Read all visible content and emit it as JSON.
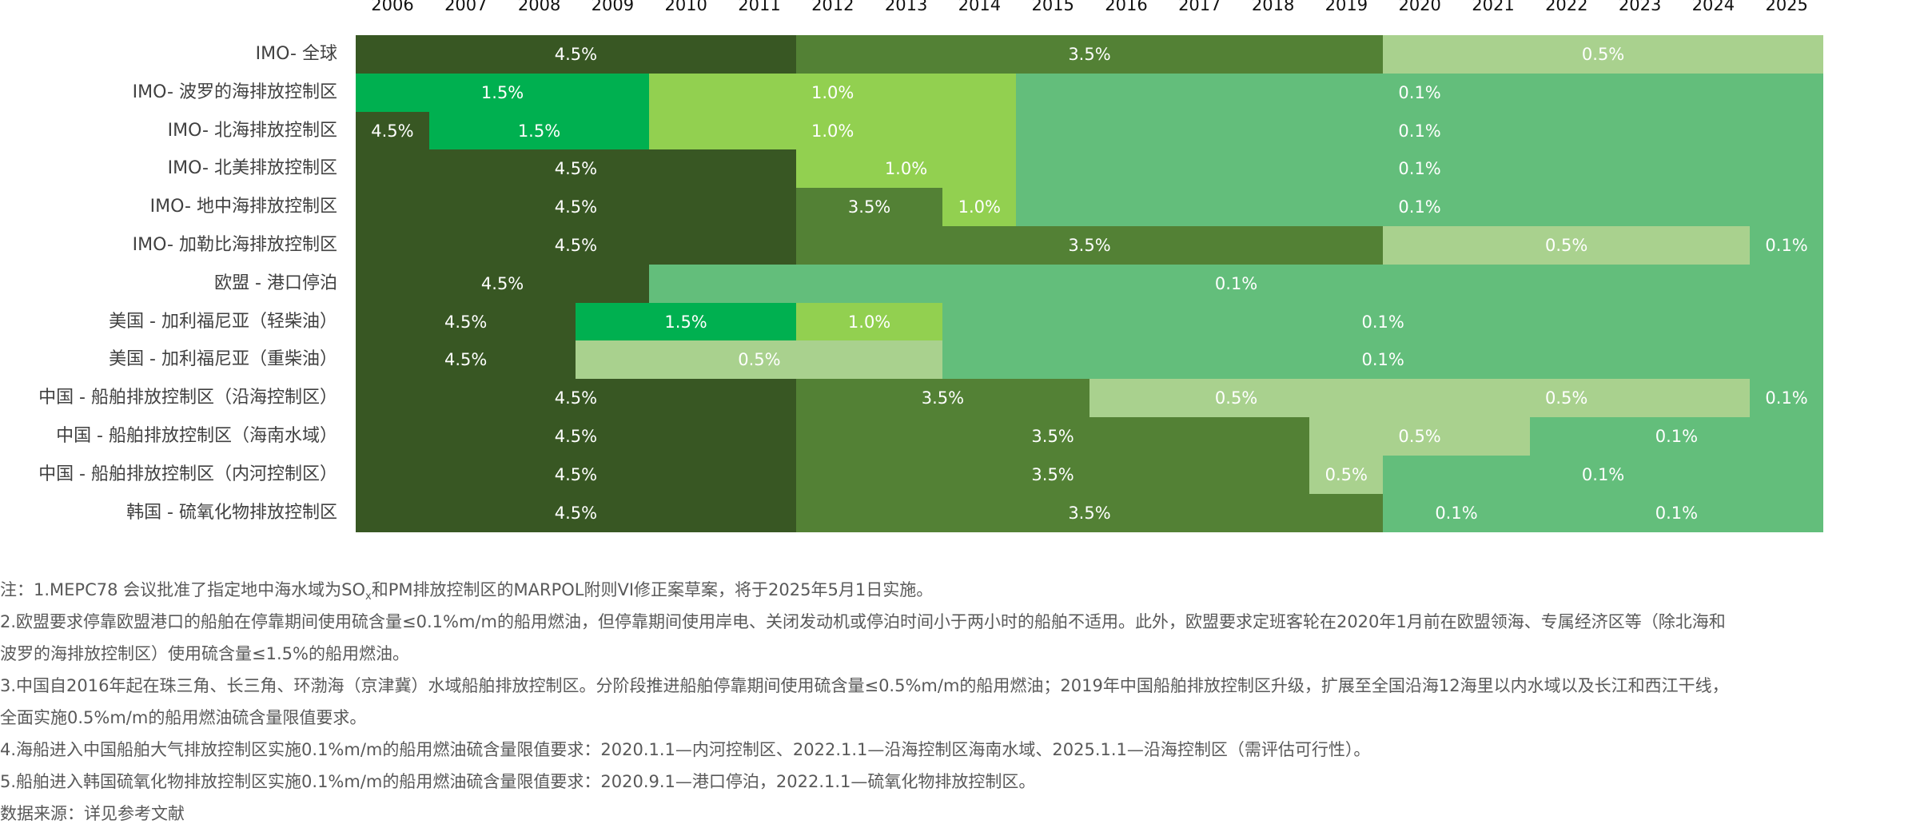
{
  "chart_data": {
    "type": "table",
    "title": "",
    "years": [
      "2006",
      "2007",
      "2008",
      "2009",
      "2010",
      "2011",
      "2012",
      "2013",
      "2014",
      "2015",
      "2016",
      "2017",
      "2018",
      "2019",
      "2020",
      "2021",
      "2022",
      "2023",
      "2024",
      "2025"
    ],
    "colors": {
      "4.5%": "#385723",
      "3.5%": "#538135",
      "1.5%": "#00b050",
      "1.0%": "#92d050",
      "0.5%": "#a9d18e",
      "0.1%": "#63be7b"
    },
    "rows": [
      {
        "label": "IMO- 全球",
        "segments": [
          {
            "from": 2006,
            "to": 2011,
            "value": "4.5%"
          },
          {
            "from": 2012,
            "to": 2019,
            "value": "3.5%"
          },
          {
            "from": 2020,
            "to": 2025,
            "value": "0.5%"
          }
        ]
      },
      {
        "label": "IMO- 波罗的海排放控制区",
        "segments": [
          {
            "from": 2006,
            "to": 2009,
            "value": "1.5%"
          },
          {
            "from": 2010,
            "to": 2014,
            "value": "1.0%"
          },
          {
            "from": 2015,
            "to": 2025,
            "value": "0.1%"
          }
        ]
      },
      {
        "label": "IMO- 北海排放控制区",
        "segments": [
          {
            "from": 2006,
            "to": 2006,
            "value": "4.5%"
          },
          {
            "from": 2007,
            "to": 2009,
            "value": "1.5%"
          },
          {
            "from": 2010,
            "to": 2014,
            "value": "1.0%"
          },
          {
            "from": 2015,
            "to": 2025,
            "value": "0.1%"
          }
        ]
      },
      {
        "label": "IMO- 北美排放控制区",
        "segments": [
          {
            "from": 2006,
            "to": 2011,
            "value": "4.5%"
          },
          {
            "from": 2012,
            "to": 2014,
            "value": "1.0%"
          },
          {
            "from": 2015,
            "to": 2025,
            "value": "0.1%"
          }
        ]
      },
      {
        "label": "IMO- 地中海排放控制区",
        "segments": [
          {
            "from": 2006,
            "to": 2011,
            "value": "4.5%"
          },
          {
            "from": 2012,
            "to": 2013,
            "value": "3.5%"
          },
          {
            "from": 2014,
            "to": 2014,
            "value": "1.0%"
          },
          {
            "from": 2015,
            "to": 2025,
            "value": "0.1%"
          }
        ]
      },
      {
        "label": "IMO- 加勒比海排放控制区",
        "segments": [
          {
            "from": 2006,
            "to": 2011,
            "value": "4.5%"
          },
          {
            "from": 2012,
            "to": 2019,
            "value": "3.5%"
          },
          {
            "from": 2020,
            "to": 2024,
            "value": "0.5%"
          },
          {
            "from": 2025,
            "to": 2025,
            "value": "0.1%"
          }
        ]
      },
      {
        "label": "欧盟 - 港口停泊",
        "segments": [
          {
            "from": 2006,
            "to": 2009,
            "value": "4.5%"
          },
          {
            "from": 2010,
            "to": 2025,
            "value": "0.1%"
          }
        ]
      },
      {
        "label": "美国 - 加利福尼亚（轻柴油）",
        "segments": [
          {
            "from": 2006,
            "to": 2008,
            "value": "4.5%"
          },
          {
            "from": 2009,
            "to": 2011,
            "value": "1.5%"
          },
          {
            "from": 2012,
            "to": 2013,
            "value": "1.0%"
          },
          {
            "from": 2014,
            "to": 2025,
            "value": "0.1%"
          }
        ]
      },
      {
        "label": "美国 - 加利福尼亚（重柴油）",
        "segments": [
          {
            "from": 2006,
            "to": 2008,
            "value": "4.5%"
          },
          {
            "from": 2009,
            "to": 2013,
            "value": "0.5%"
          },
          {
            "from": 2014,
            "to": 2025,
            "value": "0.1%"
          }
        ]
      },
      {
        "label": "中国 - 船舶排放控制区（沿海控制区）",
        "segments": [
          {
            "from": 2006,
            "to": 2011,
            "value": "4.5%"
          },
          {
            "from": 2012,
            "to": 2015,
            "value": "3.5%"
          },
          {
            "from": 2016,
            "to": 2019,
            "value": "0.5%"
          },
          {
            "from": 2020,
            "to": 2024,
            "value": "0.5%"
          },
          {
            "from": 2025,
            "to": 2025,
            "value": "0.1%"
          }
        ]
      },
      {
        "label": "中国 - 船舶排放控制区（海南水域）",
        "segments": [
          {
            "from": 2006,
            "to": 2011,
            "value": "4.5%"
          },
          {
            "from": 2012,
            "to": 2018,
            "value": "3.5%"
          },
          {
            "from": 2019,
            "to": 2021,
            "value": "0.5%"
          },
          {
            "from": 2022,
            "to": 2025,
            "value": "0.1%"
          }
        ]
      },
      {
        "label": "中国 - 船舶排放控制区（内河控制区）",
        "segments": [
          {
            "from": 2006,
            "to": 2011,
            "value": "4.5%"
          },
          {
            "from": 2012,
            "to": 2018,
            "value": "3.5%"
          },
          {
            "from": 2019,
            "to": 2019,
            "value": "0.5%"
          },
          {
            "from": 2020,
            "to": 2025,
            "value": "0.1%"
          }
        ]
      },
      {
        "label": "韩国 - 硫氧化物排放控制区",
        "segments": [
          {
            "from": 2006,
            "to": 2011,
            "value": "4.5%"
          },
          {
            "from": 2012,
            "to": 2019,
            "value": "3.5%"
          },
          {
            "from": 2020,
            "to": 2021,
            "value": "0.1%"
          },
          {
            "from": 2022,
            "to": 2025,
            "value": "0.1%"
          }
        ]
      }
    ]
  },
  "notes": {
    "note1_a": "注：1.MEPC78 会议批准了指定地中海水域为SO",
    "note1_sub": "x",
    "note1_b": "和PM排放控制区的MARPOL附则VI修正案草案，将于2025年5月1日实施。",
    "lines": [
      "2.欧盟要求停靠欧盟港口的船舶在停靠期间使用硫含量≤0.1%m/m的船用燃油，但停靠期间使用岸电、关闭发动机或停泊时间小于两小时的船舶不适用。此外，欧盟要求定班客轮在2020年1月前在欧盟领海、专属经济区等（除北海和",
      "波罗的海排放控制区）使用硫含量≤1.5%的船用燃油。",
      "3.中国自2016年起在珠三角、长三角、环渤海（京津冀）水域船舶排放控制区。分阶段推进船舶停靠期间使用硫含量≤0.5%m/m的船用燃油；2019年中国船舶排放控制区升级，扩展至全国沿海12海里以内水域以及长江和西江干线，",
      "全面实施0.5%m/m的船用燃油硫含量限值要求。",
      "4.海船进入中国船舶大气排放控制区实施0.1%m/m的船用燃油硫含量限值要求：2020.1.1—内河控制区、2022.1.1—沿海控制区海南水域、2025.1.1—沿海控制区（需评估可行性）。",
      "5.船舶进入韩国硫氧化物排放控制区实施0.1%m/m的船用燃油硫含量限值要求：2020.9.1—港口停泊，2022.1.1—硫氧化物排放控制区。",
      "数据来源：详见参考文献"
    ]
  }
}
